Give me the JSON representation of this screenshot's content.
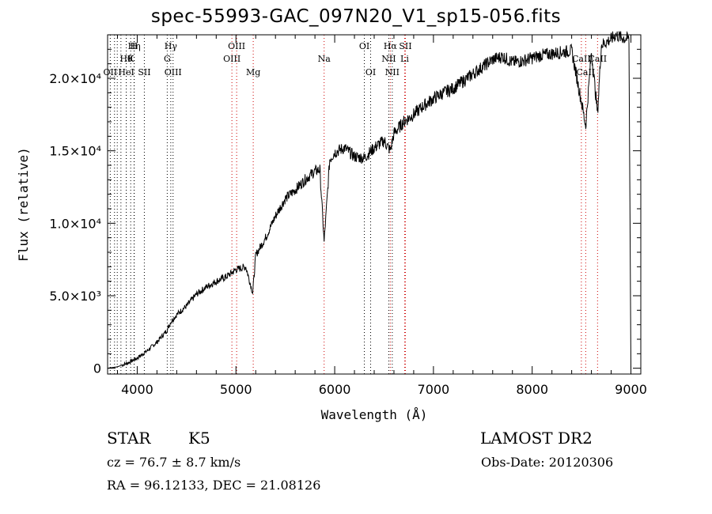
{
  "chart_data": {
    "type": "line",
    "title": "spec-55993-GAC_097N20_V1_sp15-056.fits",
    "xlabel": "Wavelength (Å)",
    "ylabel": "Flux (relative)",
    "xlim": [
      3700,
      9100
    ],
    "ylim": [
      -400,
      23000
    ],
    "x_ticks": [
      4000,
      5000,
      6000,
      7000,
      8000,
      9000
    ],
    "y_ticks": [
      {
        "value": 0,
        "label": "0"
      },
      {
        "value": 5000,
        "label": "5.0×10³"
      },
      {
        "value": 10000,
        "label": "1.0×10⁴"
      },
      {
        "value": 15000,
        "label": "1.5×10⁴"
      },
      {
        "value": 20000,
        "label": "2.0×10⁴"
      }
    ],
    "series": [
      {
        "x": [
          3700,
          3800,
          3900,
          4000,
          4100,
          4200,
          4300,
          4340,
          4400,
          4500,
          4600,
          4700,
          4800,
          4900,
          5000,
          5100,
          5170,
          5200,
          5300,
          5400,
          5500,
          5600,
          5700,
          5800,
          5850,
          5893,
          5950,
          6000,
          6100,
          6200,
          6300,
          6400,
          6500,
          6563,
          6600,
          6700,
          6800,
          6900,
          7000,
          7100,
          7200,
          7300,
          7400,
          7500,
          7600,
          7700,
          7800,
          7900,
          8000,
          8100,
          8200,
          8300,
          8400,
          8498,
          8542,
          8600,
          8662,
          8700,
          8800,
          8850,
          8900,
          8980,
          9000
        ],
        "y": [
          0,
          100,
          350,
          700,
          1200,
          1800,
          2600,
          3200,
          3700,
          4300,
          5100,
          5600,
          6000,
          6300,
          6800,
          7000,
          5200,
          7800,
          9000,
          10500,
          11700,
          12300,
          13000,
          13600,
          13700,
          8700,
          14400,
          14900,
          15200,
          14600,
          14500,
          15200,
          15700,
          15000,
          16200,
          17000,
          17500,
          18100,
          18600,
          19000,
          19300,
          19800,
          20300,
          20800,
          21300,
          21500,
          21100,
          21200,
          21400,
          21600,
          21700,
          21800,
          21900,
          18400,
          16700,
          21800,
          17600,
          22300,
          22700,
          23000,
          22800,
          22700,
          0
        ]
      }
    ],
    "lines": [
      {
        "x": 3727,
        "label": "OII",
        "row": 3,
        "color": "#000000"
      },
      {
        "x": 3770,
        "label": "",
        "row": 0,
        "color": "#000000"
      },
      {
        "x": 3798,
        "label": "",
        "row": 0,
        "color": "#000000"
      },
      {
        "x": 3835,
        "label": "",
        "row": 0,
        "color": "#000000"
      },
      {
        "x": 3889,
        "label": "HeI",
        "row": 3,
        "color": "#000000"
      },
      {
        "x": 3970,
        "label": "Hη",
        "row": 1,
        "color": "#000000"
      },
      {
        "x": 3934,
        "label": "K",
        "row": 2,
        "color": "#000000"
      },
      {
        "x": 3968,
        "label": "H",
        "row": 1,
        "color": "#000000"
      },
      {
        "x": 3889,
        "label": "Hθ",
        "row": 2,
        "color": "#000000"
      },
      {
        "x": 4072,
        "label": "SII",
        "row": 3,
        "color": "#000000"
      },
      {
        "x": 4304,
        "label": "G",
        "row": 2,
        "color": "#000000"
      },
      {
        "x": 4340,
        "label": "Hγ",
        "row": 1,
        "color": "#000000"
      },
      {
        "x": 4363,
        "label": "OIII",
        "row": 3,
        "color": "#000000"
      },
      {
        "x": 4959,
        "label": "OIII",
        "row": 2,
        "color": "#cc0000"
      },
      {
        "x": 5007,
        "label": "OIII",
        "row": 1,
        "color": "#cc0000"
      },
      {
        "x": 5175,
        "label": "Mg",
        "row": 3,
        "color": "#cc0000"
      },
      {
        "x": 5893,
        "label": "Na",
        "row": 2,
        "color": "#cc0000"
      },
      {
        "x": 6300,
        "label": "OI",
        "row": 1,
        "color": "#000000"
      },
      {
        "x": 6364,
        "label": "OI",
        "row": 3,
        "color": "#000000"
      },
      {
        "x": 6548,
        "label": "NII",
        "row": 2,
        "color": "#000000"
      },
      {
        "x": 6563,
        "label": "Hα",
        "row": 1,
        "color": "#cc0000"
      },
      {
        "x": 6583,
        "label": "NII",
        "row": 3,
        "color": "#000000"
      },
      {
        "x": 6708,
        "label": "Li",
        "row": 2,
        "color": "#cc0000"
      },
      {
        "x": 6716,
        "label": "SII",
        "row": 1,
        "color": "#cc0000"
      },
      {
        "x": 8498,
        "label": "CaII",
        "row": 2,
        "color": "#cc0000"
      },
      {
        "x": 8542,
        "label": "CaII",
        "row": 3,
        "color": "#cc0000"
      },
      {
        "x": 8662,
        "label": "CaII",
        "row": 2,
        "color": "#cc0000"
      }
    ]
  },
  "info": {
    "class_label": "STAR",
    "subclass": "K5",
    "cz": "cz = 76.7 ± 8.7 km/s",
    "coords": "RA =  96.12133, DEC =  21.08126",
    "survey": "LAMOST DR2",
    "obs_date": "Obs-Date: 20120306"
  }
}
